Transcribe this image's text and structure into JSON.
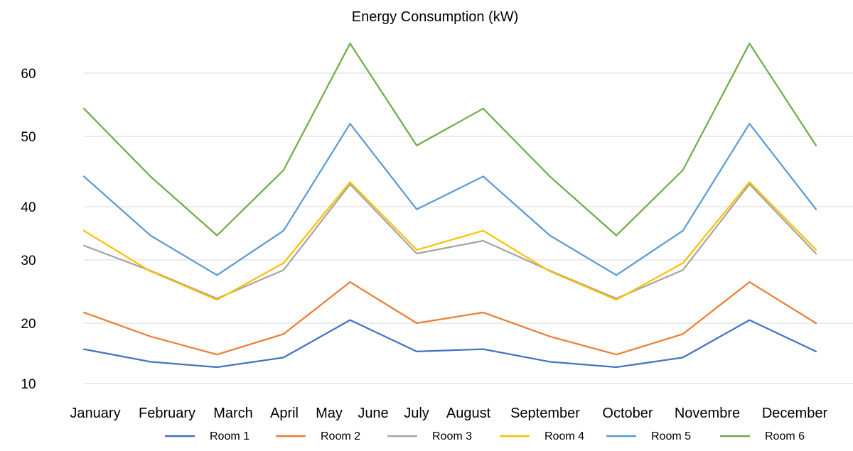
{
  "chart_data": {
    "type": "line",
    "title": "Energy Consumption (kW)",
    "xlabel": "",
    "ylabel": "",
    "categories": [
      "January",
      "February",
      "March",
      "April",
      "May",
      "June",
      "July",
      "August",
      "September",
      "October",
      "Novembre",
      "December"
    ],
    "yticks": [
      10,
      20,
      30,
      40,
      50,
      60
    ],
    "ylim": [
      10,
      63
    ],
    "grid": true,
    "legend_position": "bottom",
    "series": [
      {
        "name": "Room 1",
        "color": "#4472C4",
        "values": [
          15.7,
          13.6,
          12.7,
          14.3,
          20.5,
          15.3,
          15.7,
          13.6,
          12.7,
          14.3,
          20.5,
          15.3
        ]
      },
      {
        "name": "Room 2",
        "color": "#ED7D31",
        "values": [
          21.7,
          17.8,
          14.8,
          18.2,
          26.5,
          20.0,
          21.7,
          17.8,
          14.8,
          18.2,
          26.5,
          20.0
        ]
      },
      {
        "name": "Room 3",
        "color": "#A5A5A5",
        "values": [
          32.7,
          28.3,
          23.9,
          28.4,
          43.2,
          31.2,
          33.6,
          28.3,
          23.9,
          28.4,
          43.2,
          31.2
        ]
      },
      {
        "name": "Room 4",
        "color": "#FFC000",
        "values": [
          35.5,
          28.2,
          23.7,
          29.5,
          43.5,
          31.9,
          35.5,
          28.2,
          23.7,
          29.5,
          43.5,
          31.9
        ]
      },
      {
        "name": "Room 5",
        "color": "#5B9BD5",
        "values": [
          44.3,
          34.6,
          27.6,
          35.5,
          52.0,
          39.5,
          44.3,
          34.6,
          27.6,
          35.5,
          52.0,
          39.5
        ]
      },
      {
        "name": "Room 6",
        "color": "#70AD47",
        "values": [
          54.4,
          44.3,
          34.6,
          45.2,
          64.7,
          48.7,
          54.4,
          44.3,
          34.6,
          45.2,
          64.7,
          48.7
        ]
      }
    ]
  }
}
